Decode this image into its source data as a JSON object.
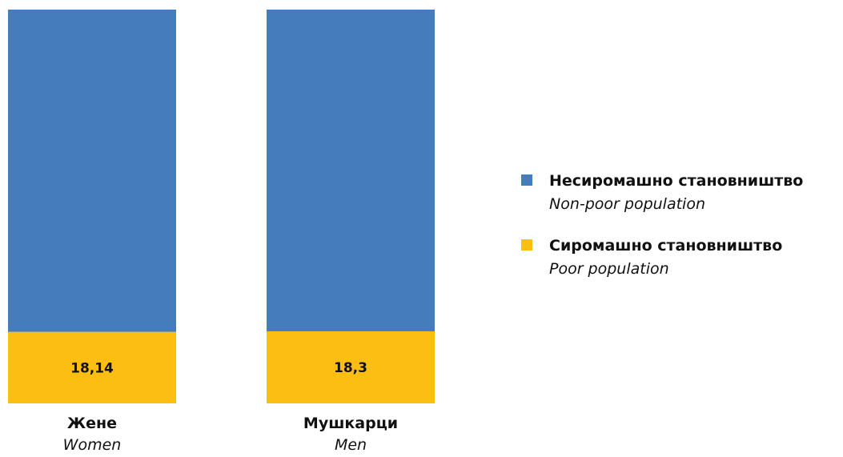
{
  "chart_data": {
    "type": "bar",
    "stacked": true,
    "normalized": true,
    "categories": [
      {
        "label": "Жене",
        "sublabel": "Women"
      },
      {
        "label": "Мушкарци",
        "sublabel": "Men"
      }
    ],
    "series": [
      {
        "name": "Сиромашно становништво",
        "name_sub": "Poor population",
        "color": "#FDBE13",
        "values": [
          18.14,
          18.3
        ],
        "data_labels": [
          "18,14",
          "18,3"
        ]
      },
      {
        "name": "Несиромашно становништво",
        "name_sub": "Non-poor population",
        "color": "#457CBB",
        "values": [
          81.86,
          81.7
        ]
      }
    ],
    "ylim": [
      0,
      100
    ],
    "grid": false,
    "legend_position": "right",
    "legend_order": [
      "Несиромашно становништво",
      "Сиромашно становништво"
    ]
  }
}
